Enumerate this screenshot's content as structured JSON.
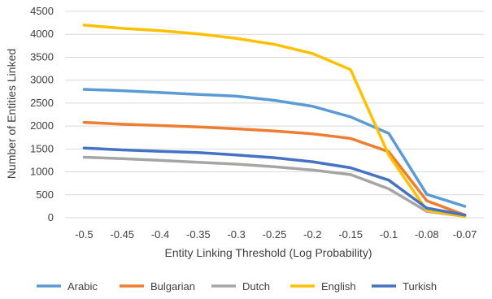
{
  "chart_data": {
    "type": "line",
    "title": "",
    "xlabel": "Entity Linking Threshold (Log Probability)",
    "ylabel": "Number of Entities Linked",
    "categories": [
      "-0.5",
      "-0.45",
      "-0.4",
      "-0.35",
      "-0.3",
      "-0.25",
      "-0.2",
      "-0.15",
      "-0.1",
      "-0.08",
      "-0.07"
    ],
    "ylim": [
      0,
      4500
    ],
    "yticks": [
      "0",
      "500",
      "1000",
      "1500",
      "2000",
      "2500",
      "3000",
      "3500",
      "4000",
      "4500"
    ],
    "grid": true,
    "legend_position": "bottom",
    "series": [
      {
        "name": "Arabic",
        "color": "#5B9BD5",
        "values": [
          2800,
          2770,
          2730,
          2690,
          2650,
          2560,
          2430,
          2200,
          1840,
          510,
          250
        ]
      },
      {
        "name": "Bulgarian",
        "color": "#ED7D31",
        "values": [
          2080,
          2040,
          2010,
          1980,
          1940,
          1890,
          1830,
          1730,
          1440,
          370,
          60
        ]
      },
      {
        "name": "Dutch",
        "color": "#A5A5A5",
        "values": [
          1320,
          1290,
          1250,
          1210,
          1170,
          1110,
          1040,
          940,
          630,
          140,
          30
        ]
      },
      {
        "name": "English",
        "color": "#FFC000",
        "values": [
          4200,
          4130,
          4080,
          4010,
          3910,
          3780,
          3580,
          3230,
          1370,
          160,
          30
        ]
      },
      {
        "name": "Turkish",
        "color": "#4472C4",
        "values": [
          1520,
          1480,
          1450,
          1420,
          1370,
          1310,
          1220,
          1090,
          820,
          210,
          60
        ]
      }
    ]
  }
}
